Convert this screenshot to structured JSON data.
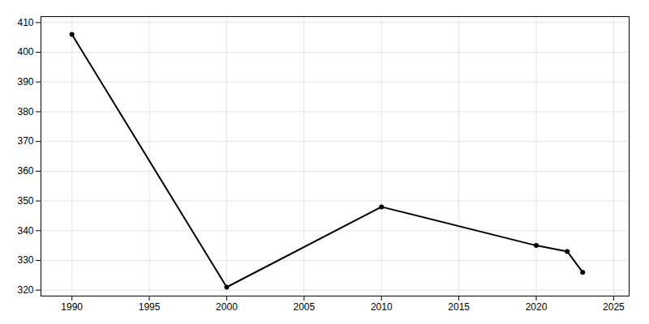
{
  "chart_data": {
    "type": "line",
    "x": [
      1990,
      2000,
      2010,
      2020,
      2022,
      2023
    ],
    "values": [
      406,
      321,
      348,
      335,
      333,
      326
    ],
    "marker": "circle",
    "xlim": [
      1988,
      2026
    ],
    "xticks": [
      1990,
      1995,
      2000,
      2005,
      2010,
      2015,
      2020,
      2025
    ],
    "ylim": [
      318,
      412
    ],
    "yticks": [
      320,
      330,
      340,
      350,
      360,
      370,
      380,
      390,
      400,
      410
    ],
    "grid": true
  }
}
